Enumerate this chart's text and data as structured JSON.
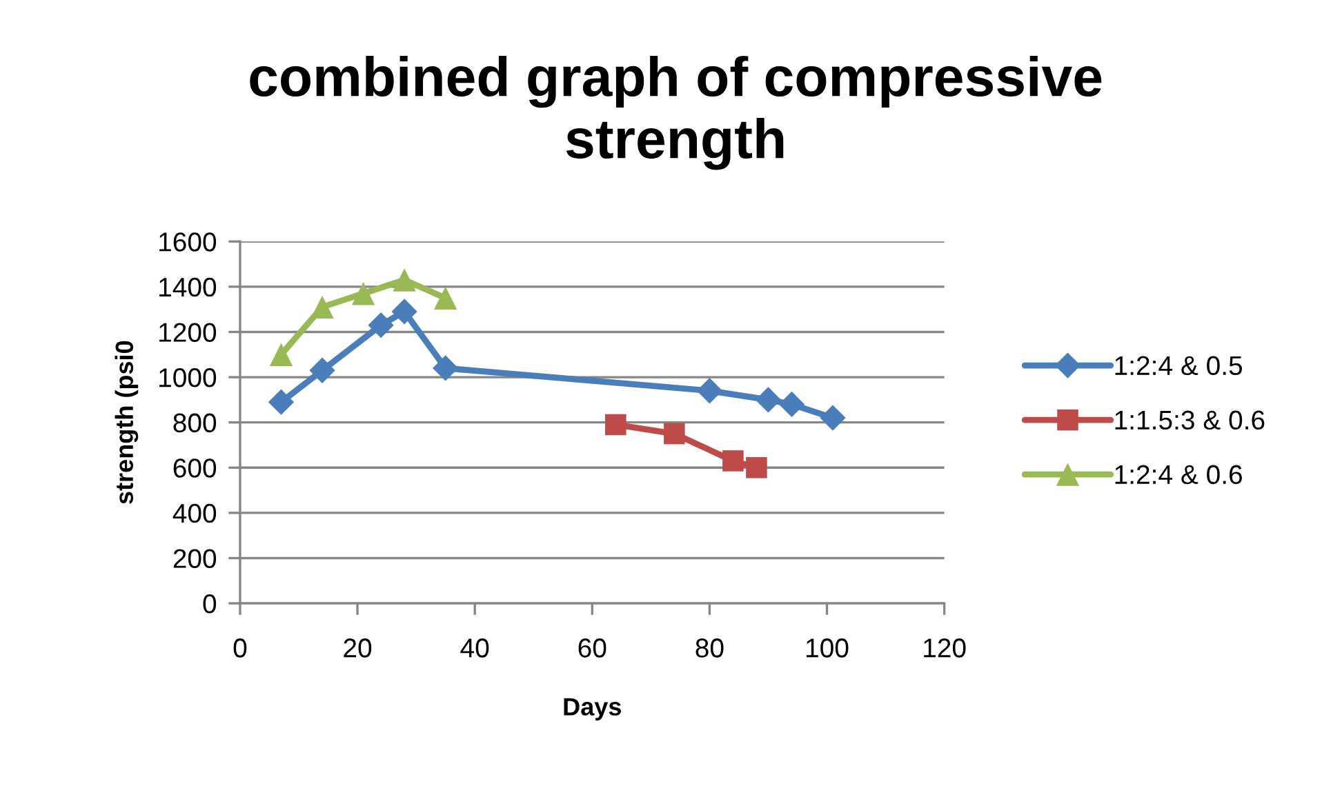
{
  "chart_data": {
    "type": "line",
    "title": "combined graph of compressive\nstrength",
    "xlabel": "Days",
    "ylabel": "strength (psi0",
    "xlim": [
      0,
      120
    ],
    "xticks": [
      0,
      20,
      40,
      60,
      80,
      100,
      120
    ],
    "ylim": [
      0,
      1600
    ],
    "yticks": [
      0,
      200,
      400,
      600,
      800,
      1000,
      1200,
      1400,
      1600
    ],
    "grid": "y",
    "legend": "right",
    "line_style": "solid",
    "series": [
      {
        "name": "1:2:4 & 0.5",
        "color": "#4a7ebb",
        "marker": "diamond",
        "x": [
          7,
          14,
          24,
          28,
          35,
          80,
          90,
          94,
          101
        ],
        "values": [
          890,
          1030,
          1230,
          1290,
          1040,
          940,
          900,
          880,
          820
        ]
      },
      {
        "name": "1:1.5:3 & 0.6",
        "color": "#be4b48",
        "marker": "square",
        "x": [
          64,
          74,
          84,
          88
        ],
        "values": [
          790,
          750,
          630,
          600
        ]
      },
      {
        "name": "1:2:4 & 0.6",
        "color": "#98b954",
        "marker": "triangle",
        "x": [
          7,
          14,
          21,
          28,
          35
        ],
        "values": [
          1100,
          1310,
          1370,
          1430,
          1350
        ]
      }
    ]
  }
}
